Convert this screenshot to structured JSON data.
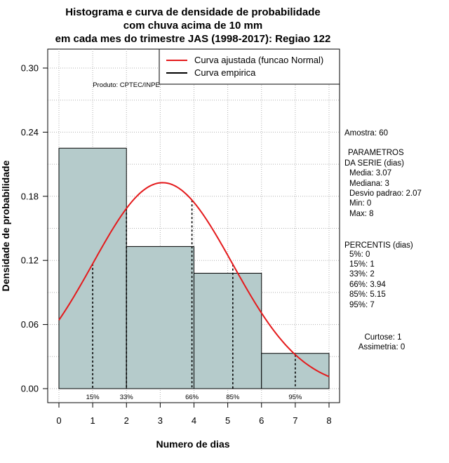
{
  "chart_data": {
    "type": "bar",
    "title_lines": [
      "Histograma e curva de densidade de probabilidade",
      "com chuva acima de 10 mm",
      "em cada mes do trimestre JAS (1998-2017): Regiao 122"
    ],
    "xlabel": "Numero de dias",
    "ylabel": "Densidade de probabilidade",
    "xlim": [
      0,
      8
    ],
    "ylim": [
      0,
      0.3
    ],
    "x_ticks": [
      "0",
      "1",
      "2",
      "3",
      "4",
      "5",
      "6",
      "7",
      "8"
    ],
    "y_ticks": [
      "0.00",
      "0.06",
      "0.12",
      "0.18",
      "0.24",
      "0.30"
    ],
    "bins": [
      {
        "start": 0,
        "end": 2,
        "density": 0.225
      },
      {
        "start": 2,
        "end": 4,
        "density": 0.133
      },
      {
        "start": 4,
        "end": 6,
        "density": 0.108
      },
      {
        "start": 6,
        "end": 8,
        "density": 0.033
      }
    ],
    "normal_curve": {
      "mean": 3.07,
      "sd": 2.07
    },
    "percentile_lines": [
      {
        "label": "15%",
        "x": 1
      },
      {
        "label": "33%",
        "x": 2
      },
      {
        "label": "66%",
        "x": 3.94
      },
      {
        "label": "85%",
        "x": 5.15
      },
      {
        "label": "95%",
        "x": 7
      }
    ],
    "legend": [
      {
        "label": "Curva ajustada (funcao Normal)",
        "color": "#e41a1c"
      },
      {
        "label": "Curva empirica",
        "color": "#000000"
      }
    ],
    "bar_color": "#b5cbcb",
    "curve_color": "#e41a1c",
    "credit": "Produto: CPTEC/INPE"
  },
  "side_panel": {
    "amostra": "Amostra: 60",
    "param_title_1": "PARAMETROS",
    "param_title_2": "DA SERIE (dias)",
    "media": "Media: 3.07",
    "mediana": "Mediana: 3",
    "desvio": "Desvio padrao: 2.07",
    "min": "Min: 0",
    "max": "Max: 8",
    "percentis_title": "PERCENTIS (dias)",
    "p5": "5%: 0",
    "p15": "15%: 1",
    "p33": "33%: 2",
    "p66": "66%: 3.94",
    "p85": "85%: 5.15",
    "p95": "95%: 7",
    "curtose": "Curtose: 1",
    "assimetria": "Assimetria: 0"
  }
}
